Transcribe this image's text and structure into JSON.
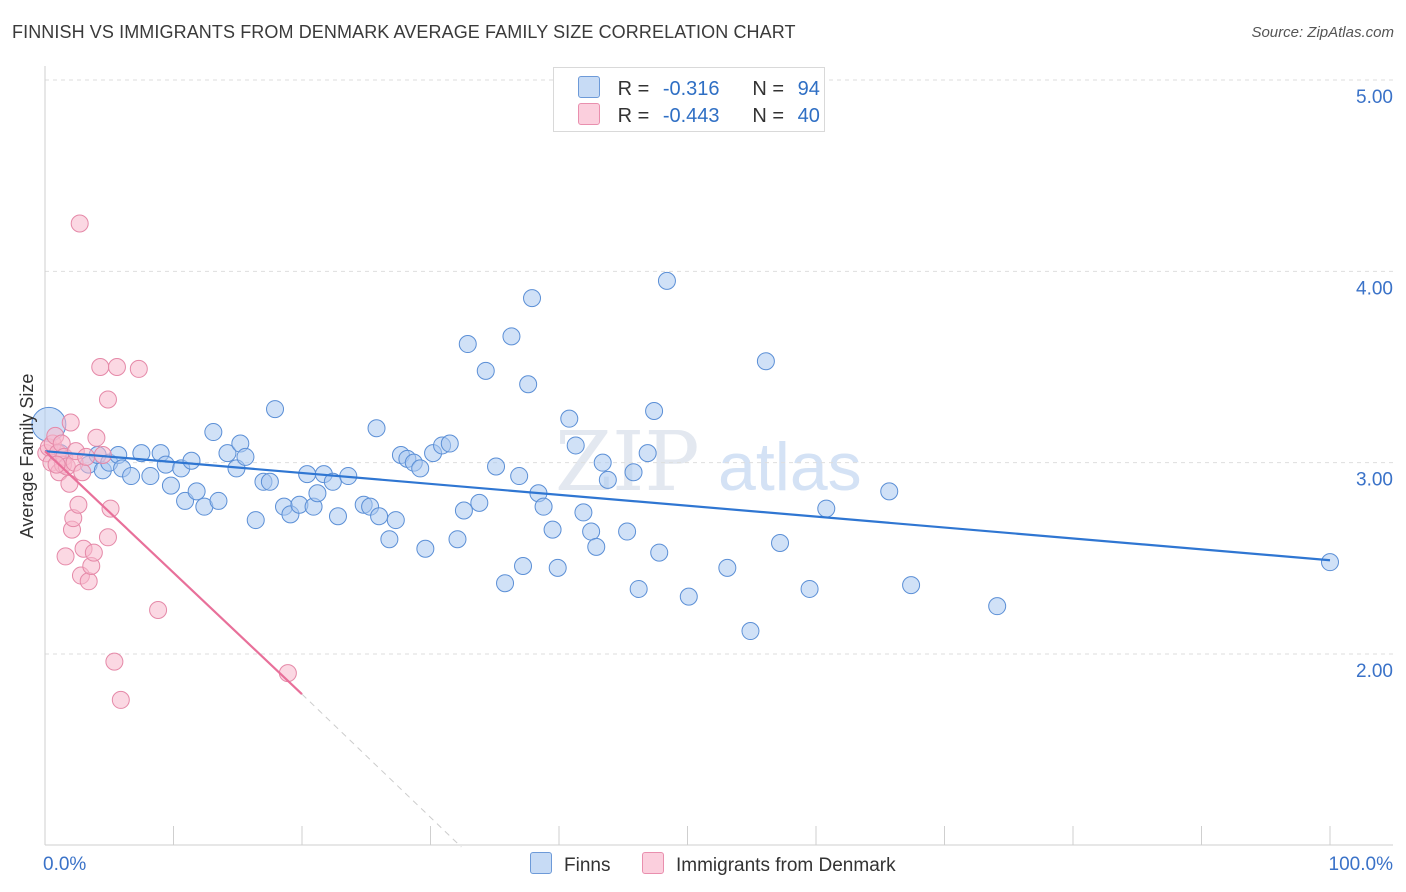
{
  "title": "FINNISH VS IMMIGRANTS FROM DENMARK AVERAGE FAMILY SIZE CORRELATION CHART",
  "source": "Source: ZipAtlas.com",
  "colors": {
    "blue_fill": "#a9c8f0",
    "blue_stroke": "#5b8fd6",
    "blue_line": "#2f76d2",
    "pink_fill": "#f7b8cc",
    "pink_stroke": "#e589a8",
    "pink_line": "#e8709a",
    "axis_label": "#3a72c8",
    "grid": "#dedede"
  },
  "legend": {
    "r_label": "R =",
    "n_label": "N =",
    "rows": [
      {
        "series": "Finns",
        "r": "-0.316",
        "n": "94"
      },
      {
        "series": "Immigrants from Denmark",
        "r": "-0.443",
        "n": "40"
      }
    ]
  },
  "bottom_legend": [
    "Finns",
    "Immigrants from Denmark"
  ],
  "watermark": {
    "zip": "ZIP",
    "atlas": "atlas"
  },
  "chart_data": {
    "type": "scatter",
    "title": "FINNISH VS IMMIGRANTS FROM DENMARK AVERAGE FAMILY SIZE CORRELATION CHART",
    "xlabel": "",
    "ylabel": "Average Family Size",
    "xlim": [
      0,
      100
    ],
    "ylim": [
      1.0,
      5.1
    ],
    "x_tick_labels": [
      "0.0%",
      "100.0%"
    ],
    "y_ticks": [
      2.0,
      3.0,
      4.0,
      5.0
    ],
    "y_tick_labels": [
      "2.00",
      "3.00",
      "4.00",
      "5.00"
    ],
    "grid": true,
    "series": [
      {
        "name": "Finns",
        "r": -0.316,
        "n": 94,
        "trend": {
          "x": [
            0,
            100
          ],
          "y": [
            3.06,
            2.49
          ]
        },
        "points": [
          [
            0.3,
            3.2
          ],
          [
            1.2,
            3.05
          ],
          [
            3.4,
            2.99
          ],
          [
            4.1,
            3.04
          ],
          [
            4.5,
            2.96
          ],
          [
            5.0,
            3.0
          ],
          [
            5.7,
            3.04
          ],
          [
            6.0,
            2.97
          ],
          [
            6.7,
            2.93
          ],
          [
            7.5,
            3.05
          ],
          [
            8.2,
            2.93
          ],
          [
            9.0,
            3.05
          ],
          [
            9.4,
            2.99
          ],
          [
            9.8,
            2.88
          ],
          [
            10.6,
            2.97
          ],
          [
            10.9,
            2.8
          ],
          [
            11.4,
            3.01
          ],
          [
            11.8,
            2.85
          ],
          [
            12.4,
            2.77
          ],
          [
            13.1,
            3.16
          ],
          [
            13.5,
            2.8
          ],
          [
            14.2,
            3.05
          ],
          [
            14.9,
            2.97
          ],
          [
            15.2,
            3.1
          ],
          [
            15.6,
            3.03
          ],
          [
            16.4,
            2.7
          ],
          [
            17.0,
            2.9
          ],
          [
            17.5,
            2.9
          ],
          [
            17.9,
            3.28
          ],
          [
            18.6,
            2.77
          ],
          [
            19.1,
            2.73
          ],
          [
            19.8,
            2.78
          ],
          [
            20.4,
            2.94
          ],
          [
            20.9,
            2.77
          ],
          [
            21.2,
            2.84
          ],
          [
            21.7,
            2.94
          ],
          [
            22.4,
            2.9
          ],
          [
            22.8,
            2.72
          ],
          [
            23.6,
            2.93
          ],
          [
            24.8,
            2.78
          ],
          [
            25.3,
            2.77
          ],
          [
            25.8,
            3.18
          ],
          [
            26.0,
            2.72
          ],
          [
            26.8,
            2.6
          ],
          [
            27.3,
            2.7
          ],
          [
            27.7,
            3.04
          ],
          [
            28.2,
            3.02
          ],
          [
            28.7,
            3.0
          ],
          [
            29.2,
            2.97
          ],
          [
            29.6,
            2.55
          ],
          [
            30.2,
            3.05
          ],
          [
            30.9,
            3.09
          ],
          [
            31.5,
            3.1
          ],
          [
            32.1,
            2.6
          ],
          [
            32.6,
            2.75
          ],
          [
            32.9,
            3.62
          ],
          [
            33.8,
            2.79
          ],
          [
            34.3,
            3.48
          ],
          [
            35.1,
            2.98
          ],
          [
            35.8,
            2.37
          ],
          [
            36.3,
            3.66
          ],
          [
            36.9,
            2.93
          ],
          [
            37.2,
            2.46
          ],
          [
            37.6,
            3.41
          ],
          [
            37.9,
            3.86
          ],
          [
            38.4,
            2.84
          ],
          [
            38.8,
            2.77
          ],
          [
            39.5,
            2.65
          ],
          [
            39.9,
            2.45
          ],
          [
            40.8,
            3.23
          ],
          [
            41.3,
            3.09
          ],
          [
            41.9,
            2.74
          ],
          [
            42.5,
            2.64
          ],
          [
            42.9,
            2.56
          ],
          [
            43.4,
            3.0
          ],
          [
            43.8,
            2.91
          ],
          [
            45.3,
            2.64
          ],
          [
            45.8,
            2.95
          ],
          [
            46.2,
            2.34
          ],
          [
            46.9,
            3.05
          ],
          [
            47.4,
            3.27
          ],
          [
            47.8,
            2.53
          ],
          [
            48.4,
            3.95
          ],
          [
            50.1,
            2.3
          ],
          [
            53.1,
            2.45
          ],
          [
            54.9,
            2.12
          ],
          [
            56.1,
            3.53
          ],
          [
            57.2,
            2.58
          ],
          [
            59.5,
            2.34
          ],
          [
            60.8,
            2.76
          ],
          [
            65.7,
            2.85
          ],
          [
            67.4,
            2.36
          ],
          [
            74.1,
            2.25
          ],
          [
            100.0,
            2.48
          ]
        ]
      },
      {
        "name": "Immigrants from Denmark",
        "r": -0.443,
        "n": 40,
        "trend": {
          "x": [
            0,
            20
          ],
          "y": [
            3.06,
            1.79
          ]
        },
        "trend_dashed": {
          "x": [
            20,
            32.4
          ],
          "y": [
            1.79,
            1.0
          ]
        },
        "points": [
          [
            0.1,
            3.05
          ],
          [
            0.3,
            3.08
          ],
          [
            0.5,
            3.0
          ],
          [
            0.6,
            3.1
          ],
          [
            0.8,
            3.14
          ],
          [
            1.0,
            3.05
          ],
          [
            1.1,
            2.95
          ],
          [
            1.3,
            3.1
          ],
          [
            1.4,
            2.99
          ],
          [
            1.5,
            3.03
          ],
          [
            1.6,
            2.51
          ],
          [
            1.7,
            2.98
          ],
          [
            1.9,
            2.89
          ],
          [
            2.0,
            3.21
          ],
          [
            2.1,
            2.65
          ],
          [
            2.2,
            2.71
          ],
          [
            2.3,
            3.0
          ],
          [
            2.4,
            3.06
          ],
          [
            2.6,
            2.78
          ],
          [
            2.7,
            4.25
          ],
          [
            2.8,
            2.41
          ],
          [
            2.9,
            2.95
          ],
          [
            3.0,
            2.55
          ],
          [
            3.2,
            3.03
          ],
          [
            3.4,
            2.38
          ],
          [
            3.6,
            2.46
          ],
          [
            3.8,
            2.53
          ],
          [
            4.0,
            3.13
          ],
          [
            4.3,
            3.5
          ],
          [
            4.5,
            3.04
          ],
          [
            4.9,
            2.61
          ],
          [
            4.9,
            3.33
          ],
          [
            5.1,
            2.76
          ],
          [
            5.4,
            1.96
          ],
          [
            5.6,
            3.5
          ],
          [
            5.9,
            1.76
          ],
          [
            7.3,
            3.49
          ],
          [
            8.8,
            2.23
          ],
          [
            18.9,
            1.9
          ],
          [
            0.9,
            2.99
          ]
        ]
      }
    ]
  }
}
